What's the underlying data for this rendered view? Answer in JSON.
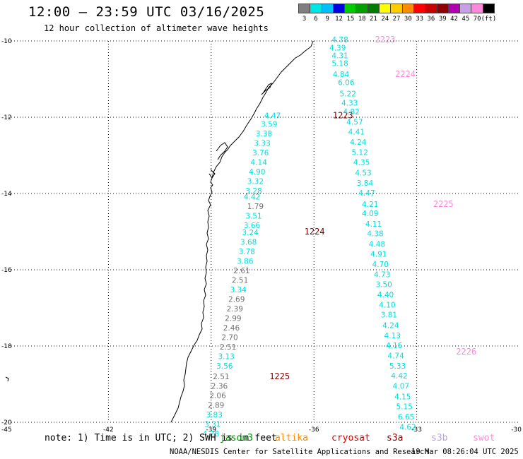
{
  "header": {
    "title": "12:00 — 23:59 UTC 03/16/2025",
    "subtitle": "12 hour collection of altimeter wave heights"
  },
  "legend": {
    "unit": "(ft)",
    "bins": [
      {
        "label": "3",
        "color": "#7f7f7f"
      },
      {
        "label": "6",
        "color": "#00e5e5"
      },
      {
        "label": "9",
        "color": "#00bfff"
      },
      {
        "label": "12",
        "color": "#0000e0"
      },
      {
        "label": "15",
        "color": "#00cc00"
      },
      {
        "label": "18",
        "color": "#00a000"
      },
      {
        "label": "21",
        "color": "#007a00"
      },
      {
        "label": "24",
        "color": "#ffff00"
      },
      {
        "label": "27",
        "color": "#ffcc00"
      },
      {
        "label": "30",
        "color": "#ff8c00"
      },
      {
        "label": "33",
        "color": "#ff0000"
      },
      {
        "label": "36",
        "color": "#c80000"
      },
      {
        "label": "39",
        "color": "#900000"
      },
      {
        "label": "42",
        "color": "#b000b0"
      },
      {
        "label": "45",
        "color": "#c8a0e6"
      },
      {
        "label": "70",
        "color": "#ff88dd"
      },
      {
        "label": "",
        "color": "#000000"
      }
    ]
  },
  "map": {
    "lon_range": [
      -45,
      -30
    ],
    "lat_range": [
      -20,
      -10
    ],
    "lat_ticks": [
      "-10",
      "-12",
      "-14",
      "-16",
      "-18",
      "-20"
    ],
    "lon_ticks": [
      "-45",
      "-42",
      "-39",
      "-36",
      "-33",
      "-30"
    ],
    "point_colors": {
      "cyan": "#00dede",
      "gray": "#707070",
      "dark": "#800000",
      "pink": "#ff88dd"
    },
    "track_labels": [
      {
        "text": "2223",
        "lon": -34.22,
        "lat": -9.96,
        "color": "pink"
      },
      {
        "text": "2224",
        "lon": -33.63,
        "lat": -10.87,
        "color": "pink"
      },
      {
        "text": "1223",
        "lon": -35.45,
        "lat": -11.95,
        "color": "dark"
      },
      {
        "text": "2225",
        "lon": -32.52,
        "lat": -14.28,
        "color": "pink"
      },
      {
        "text": "1224",
        "lon": -36.28,
        "lat": -15.0,
        "color": "dark"
      },
      {
        "text": "2226",
        "lon": -31.85,
        "lat": -18.15,
        "color": "pink"
      },
      {
        "text": "1225",
        "lon": -37.3,
        "lat": -18.8,
        "color": "dark"
      }
    ],
    "tracks": [
      {
        "name": "2223",
        "points": [
          {
            "v": "4.78",
            "lon": -35.48,
            "lat": -9.96,
            "c": "cyan"
          },
          {
            "v": "4.39",
            "lon": -35.55,
            "lat": -10.18,
            "c": "cyan"
          },
          {
            "v": "4.31",
            "lon": -35.48,
            "lat": -10.38,
            "c": "cyan"
          },
          {
            "v": "5.18",
            "lon": -35.48,
            "lat": -10.58,
            "c": "cyan"
          },
          {
            "v": "4.84",
            "lon": -35.45,
            "lat": -10.87,
            "c": "cyan"
          },
          {
            "v": "6.06",
            "lon": -35.3,
            "lat": -11.08,
            "c": "cyan"
          },
          {
            "v": "5.22",
            "lon": -35.25,
            "lat": -11.38,
            "c": "cyan"
          },
          {
            "v": "4.33",
            "lon": -35.2,
            "lat": -11.62,
            "c": "cyan"
          },
          {
            "v": "4.82",
            "lon": -35.15,
            "lat": -11.85,
            "c": "cyan"
          },
          {
            "v": "4.57",
            "lon": -35.05,
            "lat": -12.12,
            "c": "cyan"
          },
          {
            "v": "4.41",
            "lon": -35.0,
            "lat": -12.38,
            "c": "cyan"
          },
          {
            "v": "4.24",
            "lon": -34.95,
            "lat": -12.65,
            "c": "cyan"
          },
          {
            "v": "5.12",
            "lon": -34.9,
            "lat": -12.92,
            "c": "cyan"
          },
          {
            "v": "4.35",
            "lon": -34.85,
            "lat": -13.18,
            "c": "cyan"
          },
          {
            "v": "4.53",
            "lon": -34.8,
            "lat": -13.45,
            "c": "cyan"
          },
          {
            "v": "3.84",
            "lon": -34.75,
            "lat": -13.72,
            "c": "cyan"
          },
          {
            "v": "4.47",
            "lon": -34.7,
            "lat": -13.98,
            "c": "cyan"
          },
          {
            "v": "4.21",
            "lon": -34.6,
            "lat": -14.28,
            "c": "cyan"
          },
          {
            "v": "4.09",
            "lon": -34.6,
            "lat": -14.52,
            "c": "cyan"
          },
          {
            "v": "4.11",
            "lon": -34.5,
            "lat": -14.8,
            "c": "cyan"
          },
          {
            "v": "4.38",
            "lon": -34.45,
            "lat": -15.05,
            "c": "cyan"
          }
        ]
      },
      {
        "name": "2225",
        "points": [
          {
            "v": "4.48",
            "lon": -34.4,
            "lat": -15.32,
            "c": "cyan"
          },
          {
            "v": "4.91",
            "lon": -34.35,
            "lat": -15.58,
            "c": "cyan"
          },
          {
            "v": "4.70",
            "lon": -34.3,
            "lat": -15.85,
            "c": "cyan"
          },
          {
            "v": "4.73",
            "lon": -34.25,
            "lat": -16.12,
            "c": "cyan"
          },
          {
            "v": "3.50",
            "lon": -34.2,
            "lat": -16.38,
            "c": "cyan"
          },
          {
            "v": "4.40",
            "lon": -34.15,
            "lat": -16.65,
            "c": "cyan"
          },
          {
            "v": "4.10",
            "lon": -34.1,
            "lat": -16.92,
            "c": "cyan"
          },
          {
            "v": "3.81",
            "lon": -34.05,
            "lat": -17.18,
            "c": "cyan"
          },
          {
            "v": "4.24",
            "lon": -34.0,
            "lat": -17.45,
            "c": "cyan"
          },
          {
            "v": "4.13",
            "lon": -33.95,
            "lat": -17.72,
            "c": "cyan"
          },
          {
            "v": "4.16",
            "lon": -33.9,
            "lat": -17.98,
            "c": "cyan"
          },
          {
            "v": "4.74",
            "lon": -33.85,
            "lat": -18.25,
            "c": "cyan"
          },
          {
            "v": "5.33",
            "lon": -33.8,
            "lat": -18.52,
            "c": "cyan"
          },
          {
            "v": "4.42",
            "lon": -33.75,
            "lat": -18.78,
            "c": "cyan"
          },
          {
            "v": "4.07",
            "lon": -33.7,
            "lat": -19.05,
            "c": "cyan"
          },
          {
            "v": "4.15",
            "lon": -33.65,
            "lat": -19.32,
            "c": "cyan"
          },
          {
            "v": "5.15",
            "lon": -33.6,
            "lat": -19.58,
            "c": "cyan"
          },
          {
            "v": "6.65",
            "lon": -33.55,
            "lat": -19.85,
            "c": "cyan"
          },
          {
            "v": "4.62",
            "lon": -33.5,
            "lat": -20.12,
            "c": "cyan"
          }
        ]
      },
      {
        "name": "1223",
        "points": [
          {
            "v": "4.47",
            "lon": -37.45,
            "lat": -11.95,
            "c": "cyan"
          },
          {
            "v": "3.59",
            "lon": -37.55,
            "lat": -12.18,
            "c": "cyan"
          },
          {
            "v": "3.38",
            "lon": -37.7,
            "lat": -12.43,
            "c": "cyan"
          },
          {
            "v": "3.33",
            "lon": -37.75,
            "lat": -12.68,
            "c": "cyan"
          },
          {
            "v": "3.76",
            "lon": -37.8,
            "lat": -12.93,
            "c": "cyan"
          },
          {
            "v": "4.14",
            "lon": -37.85,
            "lat": -13.18,
            "c": "cyan"
          },
          {
            "v": "4.90",
            "lon": -37.9,
            "lat": -13.43,
            "c": "cyan"
          },
          {
            "v": "3.32",
            "lon": -37.95,
            "lat": -13.68,
            "c": "cyan"
          },
          {
            "v": "3.28",
            "lon": -38.0,
            "lat": -13.93,
            "c": "cyan"
          },
          {
            "v": "4.42",
            "lon": -38.05,
            "lat": -14.08,
            "c": "cyan"
          },
          {
            "v": "1.79",
            "lon": -37.95,
            "lat": -14.33,
            "c": "gray"
          },
          {
            "v": "3.51",
            "lon": -38.0,
            "lat": -14.58,
            "c": "cyan"
          },
          {
            "v": "3.66",
            "lon": -38.05,
            "lat": -14.83,
            "c": "cyan"
          },
          {
            "v": "3.24",
            "lon": -38.1,
            "lat": -15.02,
            "c": "cyan"
          },
          {
            "v": "3.68",
            "lon": -38.15,
            "lat": -15.27,
            "c": "cyan"
          },
          {
            "v": "3.78",
            "lon": -38.2,
            "lat": -15.52,
            "c": "cyan"
          },
          {
            "v": "3.86",
            "lon": -38.25,
            "lat": -15.77,
            "c": "cyan"
          },
          {
            "v": "2.61",
            "lon": -38.35,
            "lat": -16.02,
            "c": "gray"
          },
          {
            "v": "2.51",
            "lon": -38.4,
            "lat": -16.27,
            "c": "gray"
          },
          {
            "v": "3.34",
            "lon": -38.45,
            "lat": -16.52,
            "c": "cyan"
          },
          {
            "v": "2.69",
            "lon": -38.5,
            "lat": -16.77,
            "c": "gray"
          },
          {
            "v": "2.39",
            "lon": -38.55,
            "lat": -17.02,
            "c": "gray"
          },
          {
            "v": "2.99",
            "lon": -38.6,
            "lat": -17.27,
            "c": "gray"
          },
          {
            "v": "2.46",
            "lon": -38.65,
            "lat": -17.52,
            "c": "gray"
          },
          {
            "v": "2.70",
            "lon": -38.7,
            "lat": -17.77,
            "c": "gray"
          },
          {
            "v": "2.51",
            "lon": -38.75,
            "lat": -18.02,
            "c": "gray"
          },
          {
            "v": "3.13",
            "lon": -38.8,
            "lat": -18.27,
            "c": "cyan"
          },
          {
            "v": "3.56",
            "lon": -38.85,
            "lat": -18.52,
            "c": "cyan"
          },
          {
            "v": "2.51",
            "lon": -38.95,
            "lat": -18.8,
            "c": "gray"
          },
          {
            "v": "2.36",
            "lon": -39.0,
            "lat": -19.05,
            "c": "gray"
          },
          {
            "v": "2.06",
            "lon": -39.05,
            "lat": -19.3,
            "c": "gray"
          },
          {
            "v": "2.89",
            "lon": -39.1,
            "lat": -19.55,
            "c": "gray"
          },
          {
            "v": "3.83",
            "lon": -39.15,
            "lat": -19.8,
            "c": "cyan"
          },
          {
            "v": "3.31",
            "lon": -39.2,
            "lat": -20.05,
            "c": "cyan"
          },
          {
            "v": "4.28",
            "lon": -39.25,
            "lat": -20.3,
            "c": "cyan"
          }
        ]
      }
    ]
  },
  "footer": {
    "note": "note: 1) Time is in UTC; 2) SWH is in feet",
    "satellites": [
      {
        "name": "jason3",
        "color": "#009000",
        "pos": "a"
      },
      {
        "name": "altika",
        "color": "#ff8c00",
        "pos": "b"
      },
      {
        "name": "cryosat",
        "color": "#e00000",
        "pos": "c"
      },
      {
        "name": "s3a",
        "color": "#8b0000",
        "pos": "d"
      },
      {
        "name": "s3b",
        "color": "#b8a0e8",
        "pos": "e"
      },
      {
        "name": "swot",
        "color": "#ff88dd",
        "pos": "f"
      }
    ],
    "credit": "NOAA/NESDIS Center for Satellite Applications and Research",
    "timestamp": "19 Mar 08:26:04 UTC 2025"
  }
}
